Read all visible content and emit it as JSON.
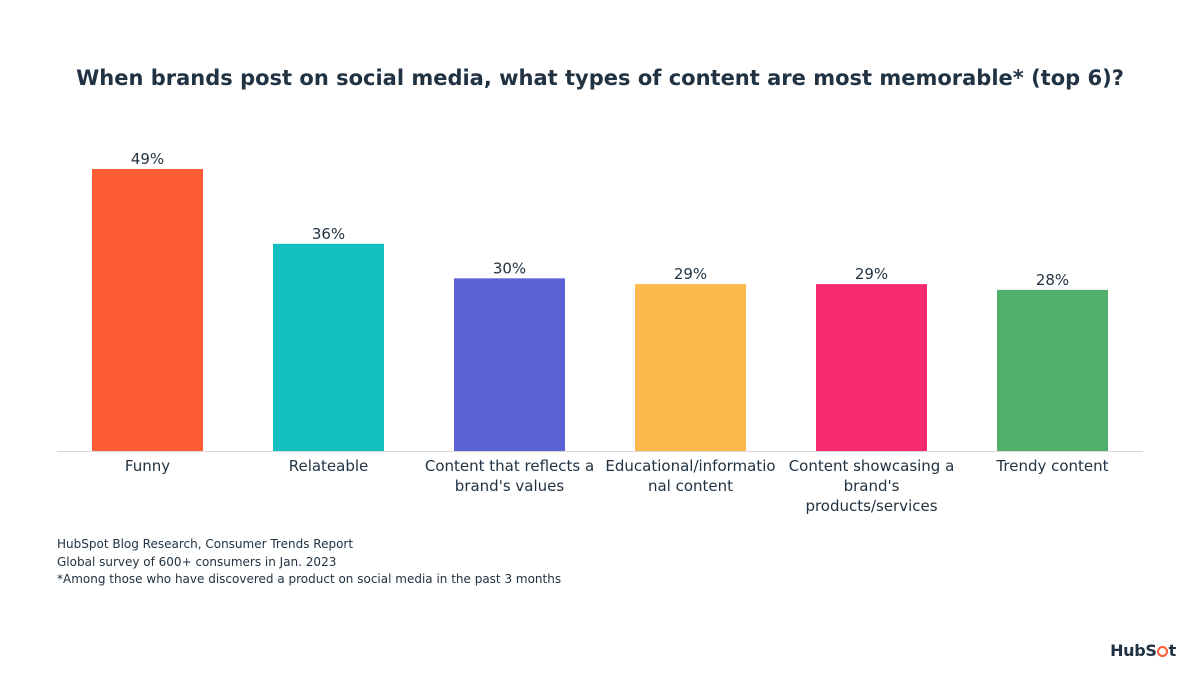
{
  "chart_data": {
    "type": "bar",
    "title": "When brands post on social media, what types of content are most memorable* (top 6)?",
    "categories": [
      "Funny",
      "Relateable",
      "Content that reflects a brand's values",
      "Educational/informational content",
      "Content showcasing a brand's products/services",
      "Trendy content"
    ],
    "category_lines": [
      [
        "Funny"
      ],
      [
        "Relateable"
      ],
      [
        "Content that reflects a",
        "brand's values"
      ],
      [
        "Educational/informatio",
        "nal content"
      ],
      [
        "Content showcasing a",
        "brand's",
        "products/services"
      ],
      [
        "Trendy content"
      ]
    ],
    "values": [
      49,
      36,
      30,
      29,
      29,
      28
    ],
    "value_labels": [
      "49%",
      "36%",
      "30%",
      "29%",
      "29%",
      "28%"
    ],
    "bar_colors": [
      "#ff5c35",
      "#13c0bf",
      "#5c62d6",
      "#fdb94d",
      "#f7296f",
      "#50b06c"
    ],
    "xlabel": "",
    "ylabel": "",
    "ylim": [
      0,
      49
    ],
    "grid": false,
    "legend": "none"
  },
  "footnotes": {
    "source": "HubSpot Blog Research, Consumer Trends Report",
    "survey": "Global survey of 600+ consumers in Jan. 2023",
    "note": "*Among those who have discovered a product on social media in the past 3 months"
  },
  "logo": {
    "text_before": "HubS",
    "text_after": "t",
    "icon": "sprocket-icon",
    "brand_color": "#ff5c35"
  }
}
